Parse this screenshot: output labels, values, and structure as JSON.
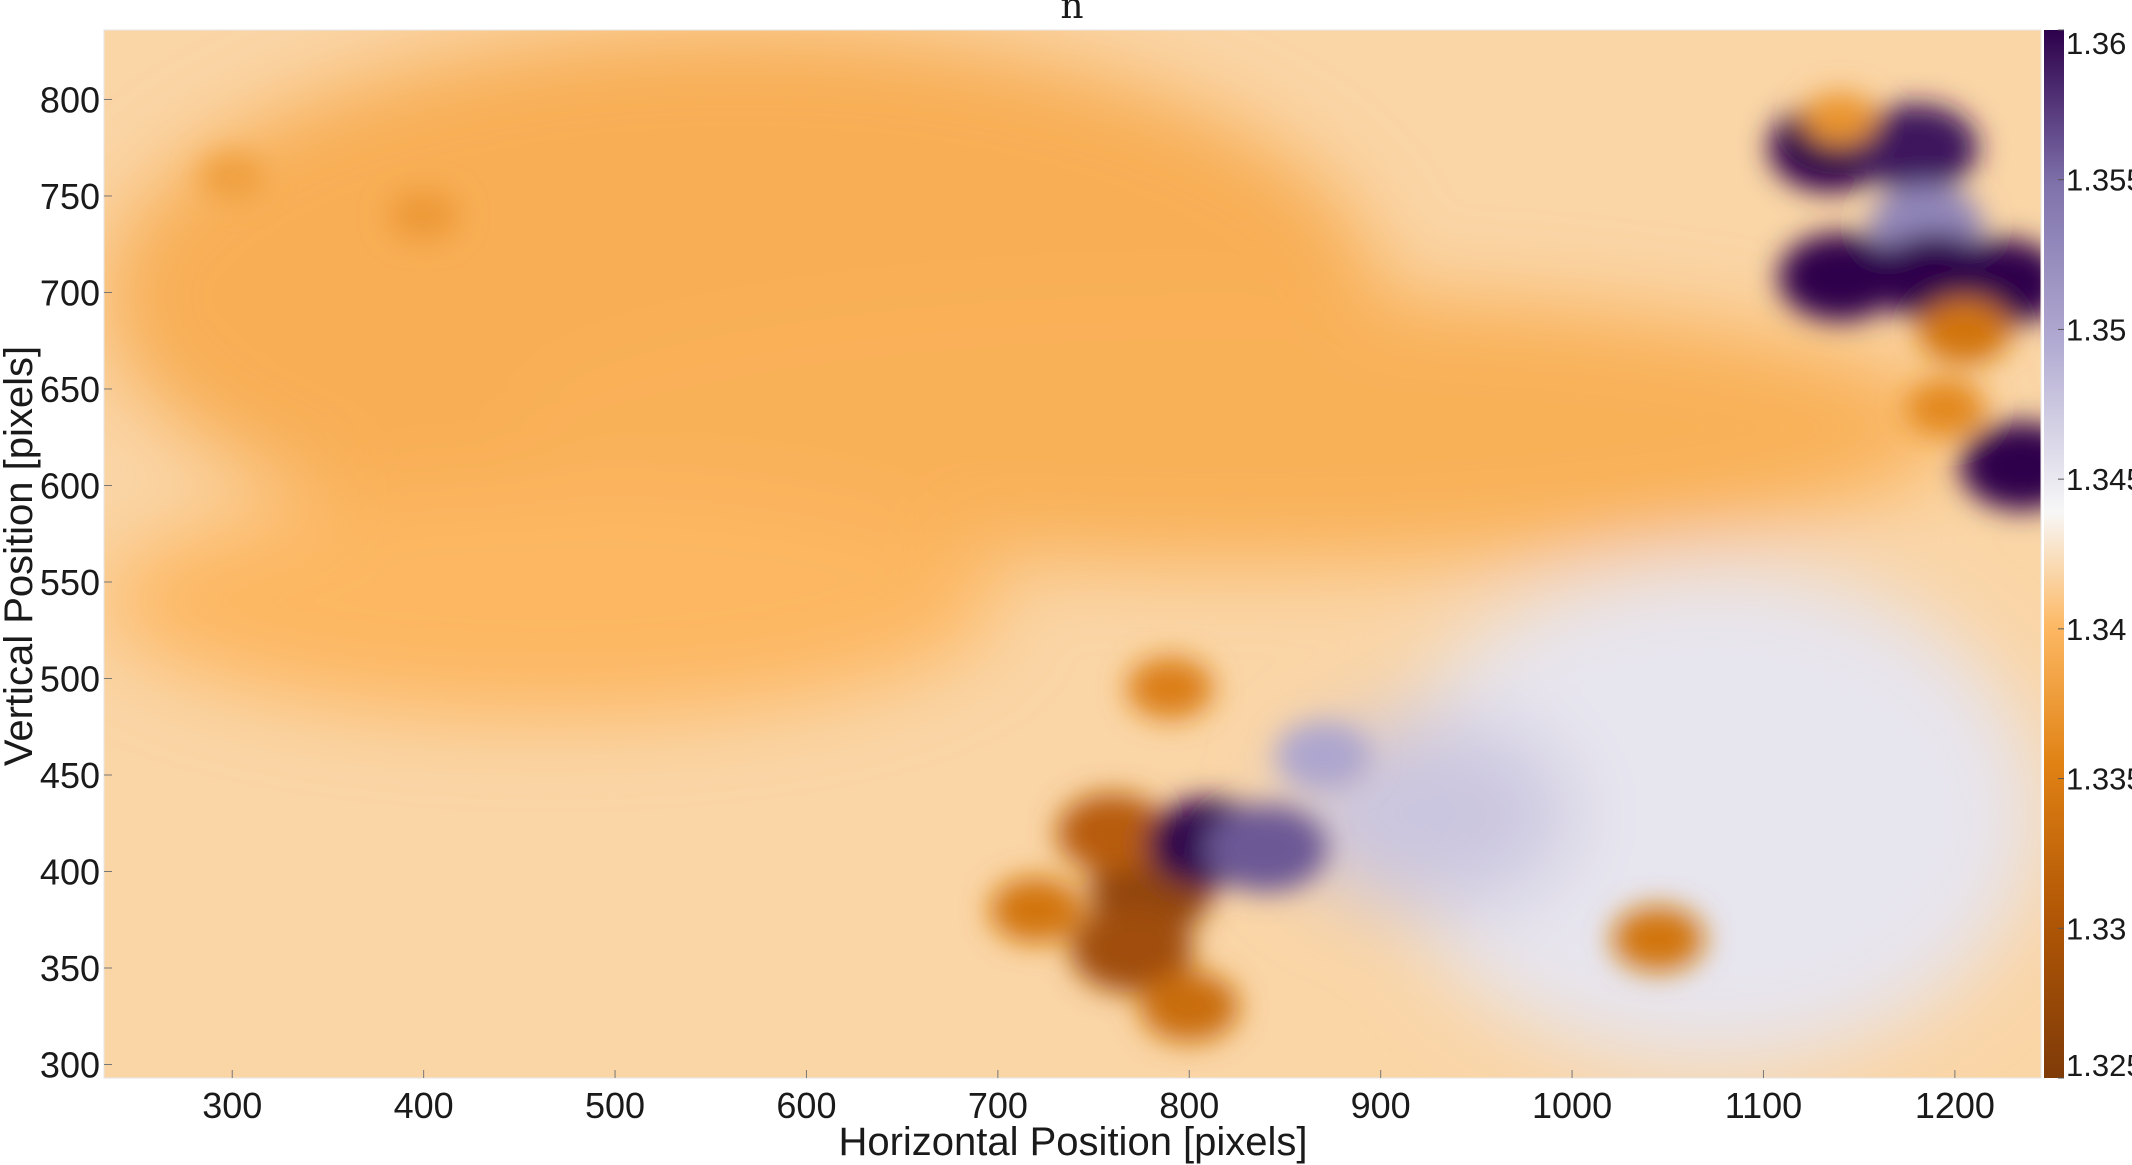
{
  "chart_data": {
    "type": "heatmap",
    "title": "n",
    "xlabel": "Horizontal Position [pixels]",
    "ylabel": "Vertical Position [pixels]",
    "xlim": [
      233,
      1245
    ],
    "ylim": [
      293,
      836
    ],
    "x_ticks": [
      300,
      400,
      500,
      600,
      700,
      800,
      900,
      1000,
      1100,
      1200
    ],
    "y_ticks": [
      300,
      350,
      400,
      450,
      500,
      550,
      600,
      650,
      700,
      750,
      800
    ],
    "colorbar": {
      "min": 1.325,
      "max": 1.36,
      "ticks": [
        1.325,
        1.33,
        1.335,
        1.34,
        1.345,
        1.35,
        1.355,
        1.36
      ],
      "tick_labels": [
        "1.325",
        "1.33",
        "1.335",
        "1.34",
        "1.345",
        "1.35",
        "1.355",
        "1.36"
      ],
      "colormap": "diverging orange-white-purple (PuOr)",
      "low_color": "#7f3b08",
      "mid_color": "#f7f7f7",
      "high_color": "#2d004b"
    },
    "field_features": [
      {
        "kind": "background",
        "x": [
          233,
          1245
        ],
        "y": [
          293,
          836
        ],
        "value": 1.3418
      },
      {
        "kind": "band",
        "x": [
          233,
          900
        ],
        "y": [
          560,
          836
        ],
        "value": 1.3392
      },
      {
        "kind": "band",
        "x": [
          450,
          1200
        ],
        "y": [
          560,
          700
        ],
        "value": 1.3395
      },
      {
        "kind": "band",
        "x": [
          233,
          700
        ],
        "y": [
          480,
          600
        ],
        "value": 1.34
      },
      {
        "kind": "region",
        "x": [
          900,
          1245
        ],
        "y": [
          300,
          560
        ],
        "value": 1.3452
      },
      {
        "kind": "region",
        "x": [
          850,
          1000
        ],
        "y": [
          380,
          480
        ],
        "value": 1.3475
      },
      {
        "kind": "blob",
        "x": 780,
        "y": 390,
        "value": 1.3268
      },
      {
        "kind": "blob",
        "x": 770,
        "y": 360,
        "value": 1.3285
      },
      {
        "kind": "blob",
        "x": 760,
        "y": 420,
        "value": 1.331
      },
      {
        "kind": "blob",
        "x": 800,
        "y": 330,
        "value": 1.333
      },
      {
        "kind": "blob",
        "x": 720,
        "y": 380,
        "value": 1.334
      },
      {
        "kind": "blob",
        "x": 810,
        "y": 415,
        "value": 1.3605
      },
      {
        "kind": "blob",
        "x": 840,
        "y": 412,
        "value": 1.356
      },
      {
        "kind": "blob",
        "x": 870,
        "y": 460,
        "value": 1.35
      },
      {
        "kind": "blob",
        "x": 790,
        "y": 495,
        "value": 1.335
      },
      {
        "kind": "blob",
        "x": 1045,
        "y": 365,
        "value": 1.334
      },
      {
        "kind": "blob",
        "x": 1135,
        "y": 775,
        "value": 1.3605
      },
      {
        "kind": "blob",
        "x": 1180,
        "y": 775,
        "value": 1.359
      },
      {
        "kind": "blob",
        "x": 1185,
        "y": 735,
        "value": 1.353
      },
      {
        "kind": "blob",
        "x": 1140,
        "y": 708,
        "value": 1.36
      },
      {
        "kind": "blob",
        "x": 1190,
        "y": 708,
        "value": 1.36
      },
      {
        "kind": "blob",
        "x": 1225,
        "y": 705,
        "value": 1.361
      },
      {
        "kind": "blob",
        "x": 1235,
        "y": 610,
        "value": 1.3605
      },
      {
        "kind": "blob",
        "x": 1205,
        "y": 680,
        "value": 1.334
      },
      {
        "kind": "blob",
        "x": 1195,
        "y": 640,
        "value": 1.336
      },
      {
        "kind": "blob",
        "x": 1140,
        "y": 790,
        "value": 1.337
      },
      {
        "kind": "blob",
        "x": 400,
        "y": 740,
        "value": 1.3375
      },
      {
        "kind": "blob",
        "x": 300,
        "y": 760,
        "value": 1.338
      }
    ]
  }
}
